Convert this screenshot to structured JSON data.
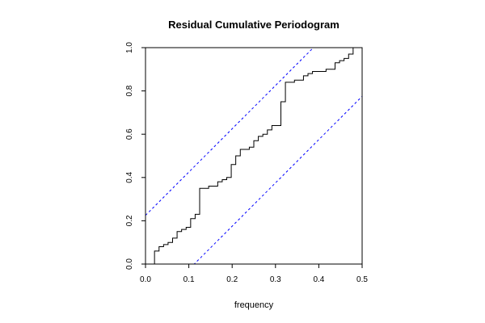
{
  "chart_data": {
    "type": "line",
    "title": "Residual Cumulative Periodogram",
    "xlabel": "frequency",
    "ylabel": "",
    "xlim": [
      0,
      0.5
    ],
    "ylim": [
      0,
      1
    ],
    "x_ticks": [
      "0.0",
      "0.1",
      "0.2",
      "0.3",
      "0.4",
      "0.5"
    ],
    "y_ticks": [
      "0.0",
      "0.2",
      "0.4",
      "0.6",
      "0.8",
      "1.0"
    ],
    "grid": false,
    "legend": "none",
    "colors": {
      "step": "#000000",
      "bounds": "#0000ff"
    },
    "step_series": {
      "x": [
        0.0,
        0.0104,
        0.0208,
        0.0313,
        0.0417,
        0.0521,
        0.0625,
        0.0729,
        0.0833,
        0.0938,
        0.1042,
        0.1146,
        0.125,
        0.1354,
        0.1458,
        0.1563,
        0.1667,
        0.1771,
        0.1875,
        0.1979,
        0.2083,
        0.2188,
        0.2292,
        0.2396,
        0.25,
        0.2604,
        0.2708,
        0.2813,
        0.2917,
        0.3021,
        0.3125,
        0.3229,
        0.3333,
        0.3438,
        0.3542,
        0.3646,
        0.375,
        0.3854,
        0.3958,
        0.4063,
        0.4167,
        0.4271,
        0.4375,
        0.4479,
        0.4583,
        0.4688,
        0.4792,
        0.4896,
        0.5
      ],
      "y": [
        0.0,
        0.0,
        0.06,
        0.08,
        0.09,
        0.1,
        0.12,
        0.15,
        0.16,
        0.17,
        0.21,
        0.23,
        0.35,
        0.35,
        0.36,
        0.36,
        0.38,
        0.39,
        0.4,
        0.46,
        0.5,
        0.53,
        0.53,
        0.54,
        0.57,
        0.59,
        0.6,
        0.62,
        0.64,
        0.64,
        0.75,
        0.84,
        0.84,
        0.85,
        0.85,
        0.87,
        0.88,
        0.89,
        0.89,
        0.89,
        0.9,
        0.9,
        0.93,
        0.94,
        0.95,
        0.97,
        1.0,
        1.0,
        1.0
      ]
    },
    "confidence_bounds": {
      "upper": {
        "intercept": 0.225,
        "slope": 2.0
      },
      "lower": {
        "intercept": -0.225,
        "slope": 2.0
      }
    }
  }
}
